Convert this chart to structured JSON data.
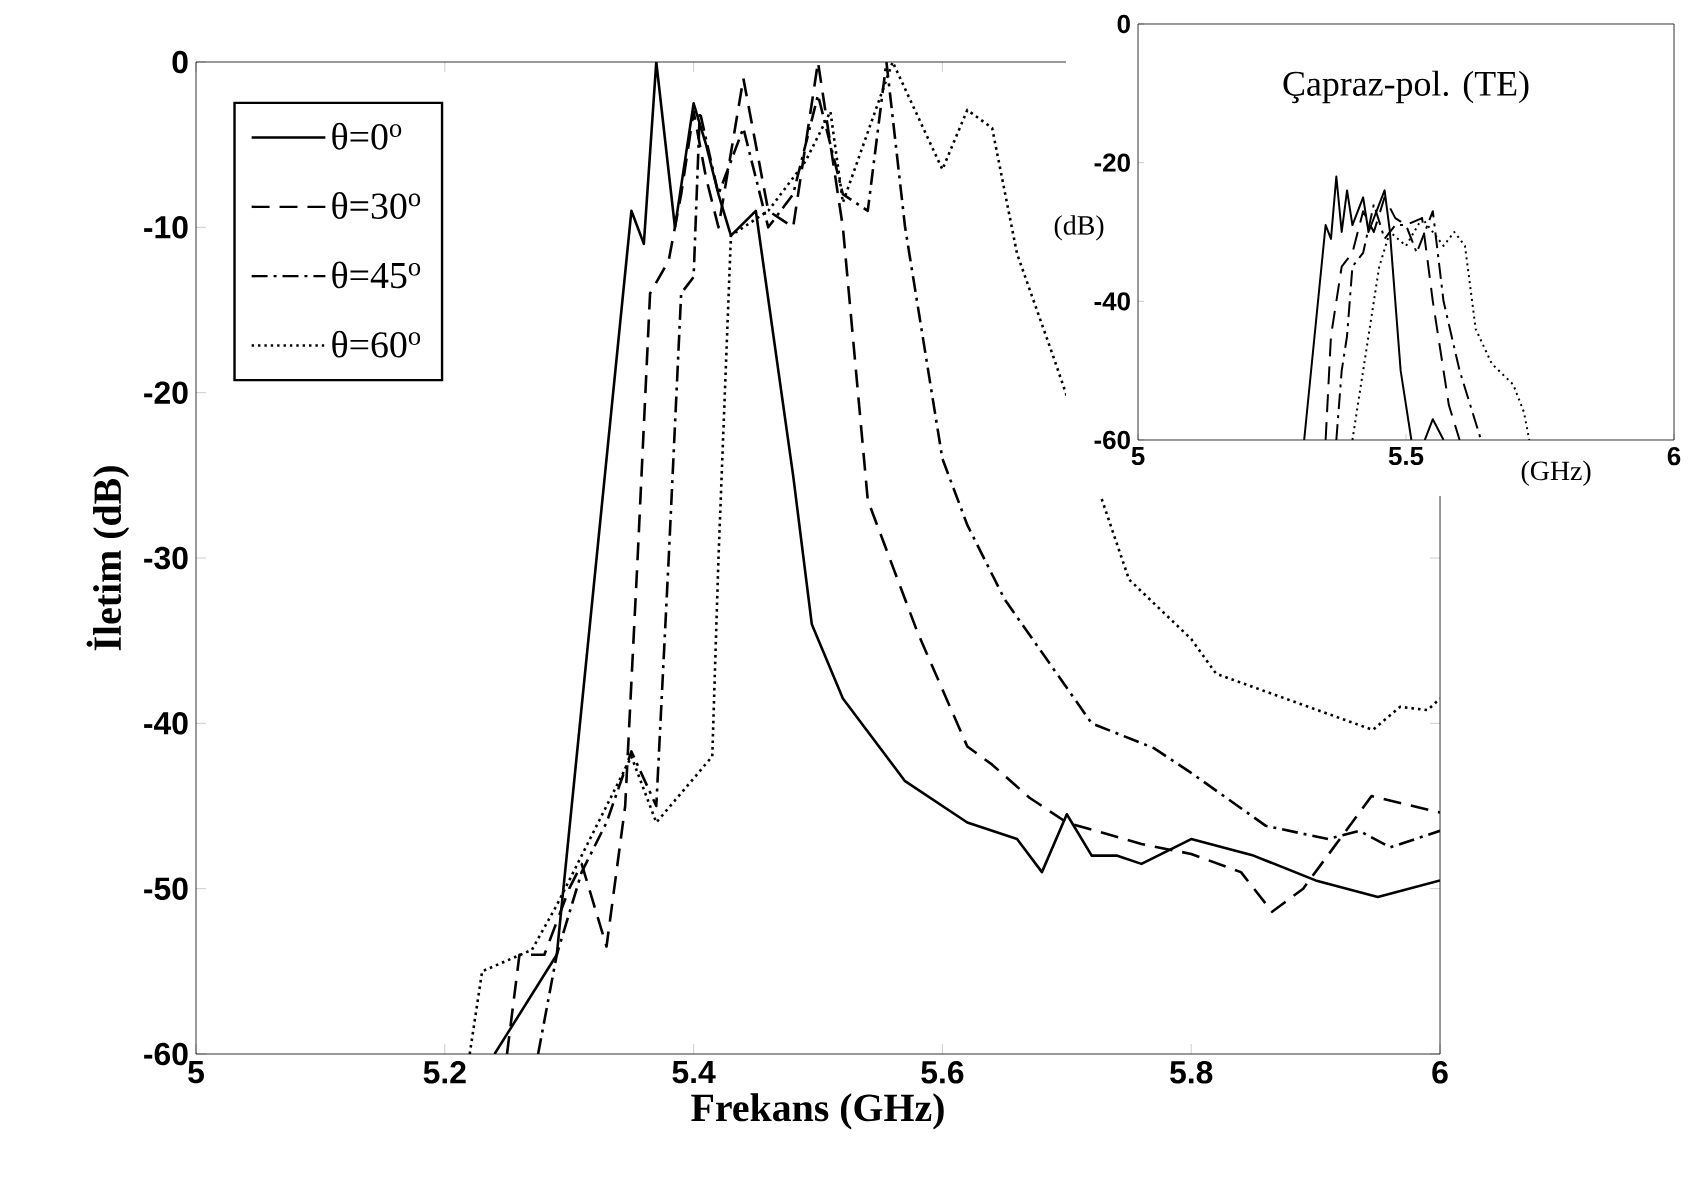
{
  "chart_data": [
    {
      "type": "line",
      "xlabel": "Frekans (GHz)",
      "ylabel": "İletim (dB)",
      "xlim": [
        5,
        6
      ],
      "ylim": [
        -60,
        0
      ],
      "xticks": [
        5,
        5.2,
        5.4,
        5.6,
        5.8,
        6
      ],
      "yticks": [
        0,
        -10,
        -20,
        -30,
        -40,
        -50,
        -60
      ],
      "legend": "top left",
      "series": [
        {
          "name": "θ=0$^{o}$",
          "color": "#000000",
          "line_style": "solid",
          "x": [
            5.24,
            5.29,
            5.35,
            5.36,
            5.37,
            5.385,
            5.4,
            5.41,
            5.42,
            5.43,
            5.45,
            5.48,
            5.495,
            5.52,
            5.57,
            5.62,
            5.66,
            5.68,
            5.7,
            5.72,
            5.74,
            5.76,
            5.8,
            5.85,
            5.9,
            5.95,
            6.0
          ],
          "values": [
            -60,
            -54,
            -9,
            -11,
            0,
            -10,
            -2.5,
            -5,
            -8,
            -10.5,
            -9,
            -25,
            -34,
            -38.5,
            -43.5,
            -46,
            -47,
            -49,
            -45.5,
            -48,
            -48,
            -48.5,
            -47,
            -48,
            -49.5,
            -50.5,
            -49.5
          ]
        },
        {
          "name": "θ=30$^{o}$",
          "color": "#000000",
          "line_style": "dashed",
          "x": [
            5.25,
            5.26,
            5.28,
            5.3,
            5.31,
            5.33,
            5.345,
            5.355,
            5.365,
            5.38,
            5.39,
            5.4,
            5.41,
            5.42,
            5.44,
            5.46,
            5.48,
            5.5,
            5.52,
            5.54,
            5.58,
            5.62,
            5.64,
            5.67,
            5.7,
            5.76,
            5.8,
            5.84,
            5.865,
            5.89,
            5.945,
            6.0
          ],
          "values": [
            -60,
            -54,
            -54,
            -50,
            -48.5,
            -53.5,
            -45,
            -30,
            -14,
            -12,
            -8,
            -3,
            -7,
            -10,
            -1,
            -9,
            -10,
            0,
            -10,
            -26.5,
            -34.5,
            -41.4,
            -42.5,
            -44.5,
            -46,
            -47.3,
            -47.9,
            -49,
            -51.4,
            -50,
            -44.4,
            -45.4
          ]
        },
        {
          "name": "θ=45$^{o}$",
          "color": "#000000",
          "line_style": "dashdot",
          "x": [
            5.275,
            5.29,
            5.31,
            5.33,
            5.35,
            5.37,
            5.38,
            5.39,
            5.4,
            5.405,
            5.42,
            5.44,
            5.46,
            5.48,
            5.5,
            5.52,
            5.54,
            5.555,
            5.57,
            5.6,
            5.62,
            5.65,
            5.72,
            5.77,
            5.8,
            5.86,
            5.91,
            5.935,
            5.96,
            6.0
          ],
          "values": [
            -60,
            -54,
            -49,
            -46,
            -41.7,
            -45,
            -30,
            -14,
            -13,
            -3,
            -8,
            -4,
            -10,
            -8,
            -2,
            -8,
            -9,
            0,
            -10,
            -24,
            -28,
            -32.5,
            -40,
            -41.5,
            -43,
            -46.2,
            -47,
            -46.5,
            -47.5,
            -46.5
          ]
        },
        {
          "name": "θ=60$^{o}$",
          "color": "#000000",
          "line_style": "dotted",
          "x": [
            5.22,
            5.23,
            5.27,
            5.29,
            5.33,
            5.35,
            5.37,
            5.415,
            5.42,
            5.43,
            5.46,
            5.49,
            5.51,
            5.52,
            5.56,
            5.6,
            5.62,
            5.64,
            5.66,
            5.69,
            5.75,
            5.8,
            5.82,
            5.946,
            5.968,
            5.99,
            6.0
          ],
          "values": [
            -60,
            -55,
            -53.7,
            -51,
            -45,
            -42,
            -46,
            -42,
            -30,
            -10.5,
            -9,
            -6,
            -3,
            -8.5,
            0,
            -6.5,
            -2.9,
            -4,
            -11.6,
            -18,
            -31.3,
            -34.9,
            -37,
            -40.4,
            -39,
            -39.2,
            -38.5
          ]
        }
      ]
    },
    {
      "type": "line",
      "title": "Çapraz-pol. (TE)",
      "xlabel": "(GHz)",
      "ylabel": "(dB)",
      "xlim": [
        5,
        6
      ],
      "ylim": [
        -60,
        0
      ],
      "xticks": [
        5,
        5.5,
        6
      ],
      "yticks": [
        0,
        -20,
        -40,
        -60
      ],
      "series": [
        {
          "color": "#000000",
          "line_style": "solid",
          "x": [
            5.31,
            5.35,
            5.36,
            5.37,
            5.38,
            5.39,
            5.4,
            5.42,
            5.43,
            5.46,
            5.47,
            5.49,
            5.51,
            5.52,
            5.535,
            5.55,
            5.57
          ],
          "values": [
            -60,
            -29,
            -31,
            -22,
            -30,
            -24,
            -29,
            -25,
            -30,
            -24,
            -30,
            -50,
            -60,
            null,
            -60,
            -57,
            -60
          ]
        },
        {
          "color": "#000000",
          "line_style": "dashed",
          "x": [
            5.35,
            5.36,
            5.38,
            5.4,
            5.42,
            5.44,
            5.46,
            5.48,
            5.5,
            5.53,
            5.55,
            5.58,
            5.6
          ],
          "values": [
            -60,
            -45,
            -35,
            -33,
            -27,
            -30,
            -25,
            -28,
            -29,
            -28,
            -40,
            -55,
            -60
          ]
        },
        {
          "color": "#000000",
          "line_style": "dashdot",
          "x": [
            5.37,
            5.38,
            5.39,
            5.4,
            5.42,
            5.44,
            5.46,
            5.48,
            5.5,
            5.52,
            5.55,
            5.57,
            5.6,
            5.62,
            5.64
          ],
          "values": [
            -60,
            -50,
            -45,
            -35,
            -33,
            -26,
            -31,
            -29,
            -29,
            -33,
            -27,
            -40,
            -50,
            -55,
            -60
          ]
        },
        {
          "color": "#000000",
          "line_style": "dotted",
          "x": [
            5.4,
            5.43,
            5.45,
            5.47,
            5.5,
            5.53,
            5.57,
            5.59,
            5.61,
            5.63,
            5.66,
            5.7,
            5.72,
            5.73
          ],
          "values": [
            -60,
            -45,
            -35,
            -30,
            -32,
            -28,
            -32,
            -30,
            -32,
            -44,
            -49,
            -52,
            -56,
            -60
          ]
        }
      ]
    }
  ]
}
